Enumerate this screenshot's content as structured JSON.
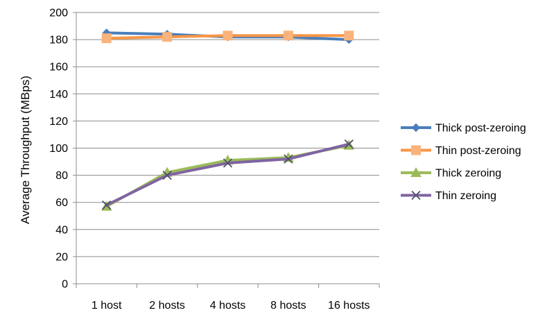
{
  "chart_data": {
    "type": "line",
    "ylabel": "Average Throughput (MBps)",
    "xlabel": "",
    "ylim": [
      0,
      200
    ],
    "yticks": [
      0,
      20,
      40,
      60,
      80,
      100,
      120,
      140,
      160,
      180,
      200
    ],
    "categories": [
      "1 host",
      "2 hosts",
      "4 hosts",
      "8 hosts",
      "16 hosts"
    ],
    "grid": "horizontal",
    "legend_position": "right",
    "series": [
      {
        "name": "Thick post-zeroing",
        "values": [
          185,
          184,
          182,
          182,
          180
        ],
        "color": "#4A7EBB",
        "marker": "diamond"
      },
      {
        "name": "Thin post-zeroing",
        "values": [
          181,
          182,
          183,
          183,
          183
        ],
        "color": "#F79646",
        "marker": "square"
      },
      {
        "name": "Thick zeroing",
        "values": [
          57,
          82,
          91,
          93,
          102
        ],
        "color": "#9BBB59",
        "marker": "triangle"
      },
      {
        "name": "Thin zeroing",
        "values": [
          58,
          80,
          89,
          92,
          103
        ],
        "color": "#8064A2",
        "marker": "x"
      }
    ]
  }
}
